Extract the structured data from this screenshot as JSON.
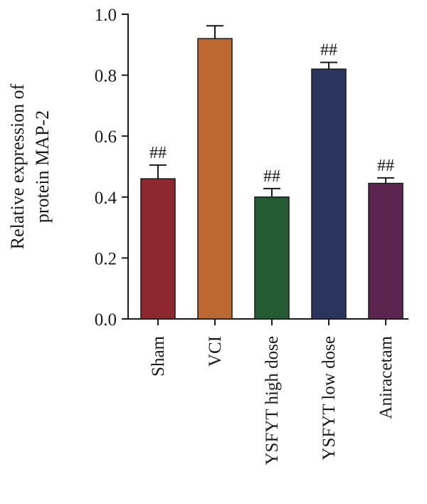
{
  "chart_data": {
    "type": "bar",
    "title": "",
    "ylabel_lines": [
      "Relative expression of",
      "protein MAP-2"
    ],
    "xlabel": "",
    "ylim": [
      0,
      1.0
    ],
    "yticks": [
      "0.0",
      "0.2",
      "0.4",
      "0.6",
      "0.8",
      "1.0"
    ],
    "categories": [
      "Sham",
      "VCI",
      "YSFYT high dose",
      "YSFYT low dose",
      "Aniracetam"
    ],
    "values": [
      0.46,
      0.92,
      0.4,
      0.82,
      0.445
    ],
    "errors": [
      0.045,
      0.042,
      0.028,
      0.022,
      0.018
    ],
    "annotations": [
      "##",
      "",
      "##",
      "##",
      "##"
    ],
    "colors": [
      "#8e2730",
      "#bd6830",
      "#265c34",
      "#2c3460",
      "#5b2550"
    ],
    "grid": false,
    "legend": "none"
  }
}
